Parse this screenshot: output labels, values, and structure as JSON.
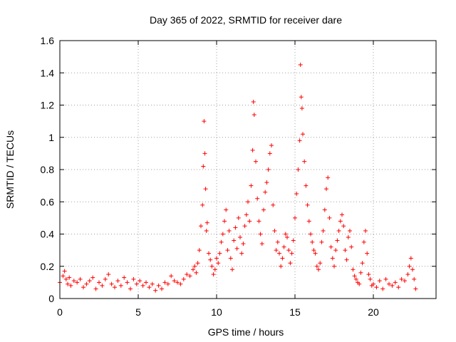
{
  "chart_data": {
    "type": "scatter",
    "title": "Day 365 of 2022, SRMTID for receiver dare",
    "xlabel": "GPS time / hours",
    "ylabel": "SRMTID / TECUs",
    "xlim": [
      0,
      24
    ],
    "ylim": [
      0,
      1.6
    ],
    "x_ticks": [
      0,
      5,
      10,
      15,
      20
    ],
    "x_tick_labels": [
      "0",
      "5",
      "10",
      "15",
      "20"
    ],
    "y_ticks": [
      0,
      0.2,
      0.4,
      0.6,
      0.8,
      1.0,
      1.2,
      1.4,
      1.6
    ],
    "y_tick_labels": [
      "0",
      "0.2",
      "0.4",
      "0.6",
      "0.8",
      "1",
      "1.2",
      "1.4",
      "1.6"
    ],
    "grid": true,
    "marker": "plus",
    "color": "#ff0000",
    "series": [
      {
        "name": "SRMTID",
        "x": [
          0.0,
          0.2,
          0.3,
          0.4,
          0.5,
          0.6,
          0.7,
          0.9,
          1.1,
          1.3,
          1.5,
          1.7,
          1.9,
          2.1,
          2.3,
          2.5,
          2.7,
          2.9,
          3.1,
          3.3,
          3.5,
          3.7,
          3.9,
          4.1,
          4.3,
          4.5,
          4.7,
          4.9,
          5.1,
          5.3,
          5.5,
          5.7,
          5.9,
          6.1,
          6.3,
          6.5,
          6.7,
          6.9,
          7.1,
          7.3,
          7.5,
          7.7,
          7.9,
          8.1,
          8.3,
          8.5,
          8.6,
          8.7,
          8.8,
          8.9,
          9.0,
          9.1,
          9.15,
          9.2,
          9.25,
          9.3,
          9.35,
          9.4,
          9.5,
          9.6,
          9.7,
          9.8,
          9.9,
          10.0,
          10.1,
          10.2,
          10.3,
          10.4,
          10.5,
          10.6,
          10.7,
          10.8,
          10.9,
          11.0,
          11.1,
          11.2,
          11.3,
          11.4,
          11.5,
          11.6,
          11.7,
          11.8,
          11.9,
          12.0,
          12.1,
          12.2,
          12.3,
          12.35,
          12.4,
          12.5,
          12.6,
          12.7,
          12.8,
          12.9,
          13.0,
          13.1,
          13.2,
          13.3,
          13.4,
          13.5,
          13.6,
          13.7,
          13.8,
          13.9,
          14.0,
          14.1,
          14.2,
          14.3,
          14.4,
          14.5,
          14.6,
          14.7,
          14.8,
          14.9,
          15.0,
          15.1,
          15.2,
          15.3,
          15.35,
          15.4,
          15.45,
          15.5,
          15.6,
          15.7,
          15.8,
          15.9,
          16.0,
          16.1,
          16.2,
          16.3,
          16.4,
          16.5,
          16.6,
          16.7,
          16.8,
          16.9,
          17.0,
          17.1,
          17.2,
          17.3,
          17.4,
          17.5,
          17.6,
          17.7,
          17.8,
          17.9,
          18.0,
          18.1,
          18.2,
          18.3,
          18.4,
          18.5,
          18.6,
          18.7,
          18.8,
          18.9,
          19.0,
          19.1,
          19.2,
          19.3,
          19.4,
          19.5,
          19.6,
          19.7,
          19.8,
          19.9,
          20.0,
          20.2,
          20.4,
          20.6,
          20.8,
          21.0,
          21.2,
          21.4,
          21.6,
          21.8,
          22.0,
          22.2,
          22.3,
          22.4,
          22.5,
          22.6,
          22.7
        ],
        "y": [
          0.1,
          0.14,
          0.17,
          0.12,
          0.09,
          0.13,
          0.08,
          0.11,
          0.1,
          0.12,
          0.07,
          0.09,
          0.11,
          0.13,
          0.06,
          0.1,
          0.08,
          0.12,
          0.15,
          0.09,
          0.07,
          0.11,
          0.08,
          0.13,
          0.1,
          0.06,
          0.12,
          0.09,
          0.11,
          0.08,
          0.1,
          0.07,
          0.09,
          0.05,
          0.08,
          0.06,
          0.1,
          0.09,
          0.14,
          0.11,
          0.1,
          0.09,
          0.12,
          0.15,
          0.14,
          0.18,
          0.2,
          0.16,
          0.22,
          0.3,
          0.45,
          0.58,
          0.82,
          1.1,
          0.9,
          0.68,
          0.42,
          0.47,
          0.28,
          0.24,
          0.2,
          0.15,
          0.18,
          0.25,
          0.22,
          0.28,
          0.35,
          0.4,
          0.48,
          0.55,
          0.3,
          0.42,
          0.25,
          0.18,
          0.36,
          0.44,
          0.31,
          0.5,
          0.38,
          0.28,
          0.34,
          0.45,
          0.52,
          0.6,
          0.48,
          0.7,
          0.92,
          1.22,
          1.14,
          0.85,
          0.62,
          0.48,
          0.4,
          0.34,
          0.55,
          0.66,
          0.72,
          0.8,
          0.9,
          0.95,
          0.58,
          0.42,
          0.3,
          0.35,
          0.28,
          0.2,
          0.25,
          0.32,
          0.4,
          0.38,
          0.3,
          0.22,
          0.28,
          0.36,
          0.5,
          0.65,
          0.8,
          0.98,
          1.45,
          1.25,
          1.18,
          1.02,
          0.85,
          0.7,
          0.58,
          0.48,
          0.4,
          0.35,
          0.3,
          0.28,
          0.2,
          0.18,
          0.22,
          0.35,
          0.42,
          0.55,
          0.68,
          0.75,
          0.5,
          0.32,
          0.25,
          0.2,
          0.3,
          0.36,
          0.42,
          0.48,
          0.52,
          0.45,
          0.3,
          0.24,
          0.38,
          0.42,
          0.32,
          0.18,
          0.14,
          0.12,
          0.1,
          0.09,
          0.16,
          0.22,
          0.35,
          0.42,
          0.28,
          0.15,
          0.12,
          0.08,
          0.09,
          0.07,
          0.11,
          0.06,
          0.12,
          0.09,
          0.08,
          0.1,
          0.07,
          0.12,
          0.11,
          0.15,
          0.2,
          0.25,
          0.18,
          0.12,
          0.06
        ]
      }
    ]
  }
}
